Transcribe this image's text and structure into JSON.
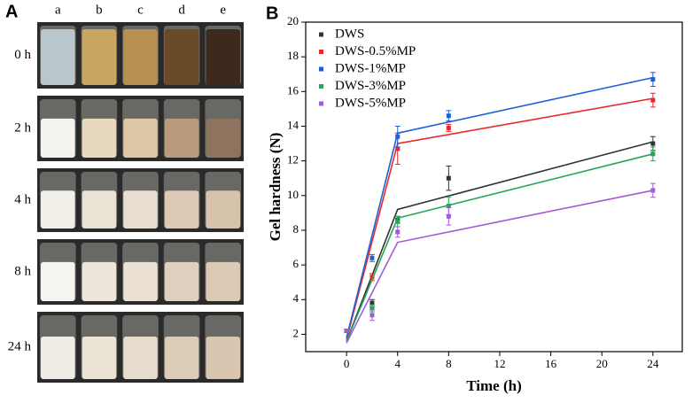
{
  "panel_a": {
    "label": "A",
    "columns": [
      "a",
      "b",
      "c",
      "d",
      "e"
    ],
    "rows": [
      "0 h",
      "2 h",
      "4 h",
      "8 h",
      "24 h"
    ]
  },
  "chart_data": {
    "type": "scatter",
    "panel_label": "B",
    "x_label": "Time (h)",
    "y_label": "Gel hardness (N)",
    "x": [
      0,
      2,
      4,
      8,
      24
    ],
    "fit_x": [
      0,
      4,
      24
    ],
    "series": [
      {
        "name": "DWS",
        "color": "#333333",
        "values": [
          2.2,
          3.8,
          8.6,
          11.0,
          13.0
        ],
        "errors": [
          0.1,
          0.2,
          0.2,
          0.7,
          0.4
        ],
        "fit": [
          1.6,
          9.2,
          13.1
        ]
      },
      {
        "name": "DWS-0.5%MP",
        "color": "#e8282a",
        "values": [
          2.2,
          5.3,
          12.7,
          13.9,
          15.5
        ],
        "errors": [
          0.1,
          0.2,
          0.9,
          0.2,
          0.4
        ],
        "fit": [
          1.7,
          13.0,
          15.6
        ]
      },
      {
        "name": "DWS-1%MP",
        "color": "#1f5fd6",
        "values": [
          2.2,
          6.4,
          13.4,
          14.6,
          16.7
        ],
        "errors": [
          0.1,
          0.2,
          0.6,
          0.3,
          0.4
        ],
        "fit": [
          1.8,
          13.6,
          16.8
        ]
      },
      {
        "name": "DWS-3%MP",
        "color": "#27a35a",
        "values": [
          2.2,
          3.5,
          8.5,
          9.4,
          12.4
        ],
        "errors": [
          0.1,
          0.2,
          0.3,
          0.5,
          0.4
        ],
        "fit": [
          1.6,
          8.7,
          12.4
        ]
      },
      {
        "name": "DWS-5%MP",
        "color": "#a45ad8",
        "values": [
          2.2,
          3.1,
          7.9,
          8.8,
          10.3
        ],
        "errors": [
          0.1,
          0.3,
          0.3,
          0.5,
          0.4
        ],
        "fit": [
          1.5,
          7.3,
          10.3
        ]
      }
    ],
    "xlim": [
      -3.2,
      26.3
    ],
    "ylim": [
      1,
      20
    ],
    "xticks": [
      0,
      4,
      8,
      12,
      16,
      20,
      24
    ],
    "yticks": [
      2,
      4,
      6,
      8,
      10,
      12,
      14,
      16,
      18,
      20
    ],
    "legend": "top-left"
  }
}
